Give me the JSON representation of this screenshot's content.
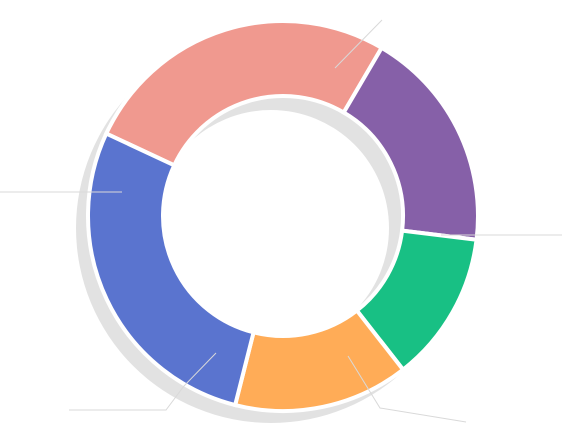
{
  "chart_data": {
    "type": "pie",
    "variant": "donut",
    "title": "",
    "legend": "none",
    "data_labels": "leader-lines-only",
    "categories": [
      "",
      "",
      "",
      "",
      ""
    ],
    "values": [
      26.5,
      18.5,
      12.5,
      14.5,
      28
    ],
    "colors": [
      "#F0998F",
      "#8660A8",
      "#18C084",
      "#FFAC57",
      "#5A74CF"
    ],
    "shadow_color": "#e2e2e2",
    "start_angle_deg": -155,
    "direction": "clockwise"
  }
}
